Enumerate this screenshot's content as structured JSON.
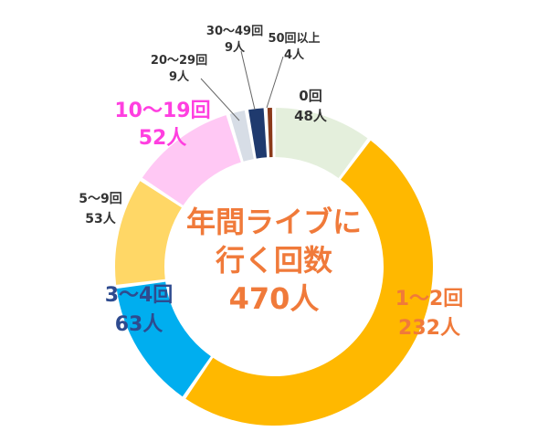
{
  "chart_data": {
    "type": "pie",
    "title_lines": [
      "年間ライブに",
      "行く回数",
      "470人"
    ],
    "colors": {
      "title": "#f07a3a"
    },
    "slices": [
      {
        "category": "0回",
        "value": 48,
        "count_label": "48人",
        "color": "#e4efdc",
        "label_color": "#333333"
      },
      {
        "category": "1～2回",
        "value": 232,
        "count_label": "232人",
        "color": "#ffb800",
        "label_color": "#f07a3a"
      },
      {
        "category": "3～4回",
        "value": 63,
        "count_label": "63人",
        "color": "#00aeef",
        "label_color": "#2e4b8f"
      },
      {
        "category": "5～9回",
        "value": 53,
        "count_label": "53人",
        "color": "#ffd766",
        "label_color": "#333333"
      },
      {
        "category": "10～19回",
        "value": 52,
        "count_label": "52人",
        "color": "#ffc8f4",
        "label_color": "#ff3fe0"
      },
      {
        "category": "20～29回",
        "value": 9,
        "count_label": "9人",
        "color": "#d7dde6",
        "label_color": "#333333"
      },
      {
        "category": "30～49回",
        "value": 9,
        "count_label": "9人",
        "color": "#1f3a6e",
        "label_color": "#333333"
      },
      {
        "category": "50回以上",
        "value": 4,
        "count_label": "4人",
        "color": "#8b3a1a",
        "label_color": "#333333"
      }
    ]
  }
}
